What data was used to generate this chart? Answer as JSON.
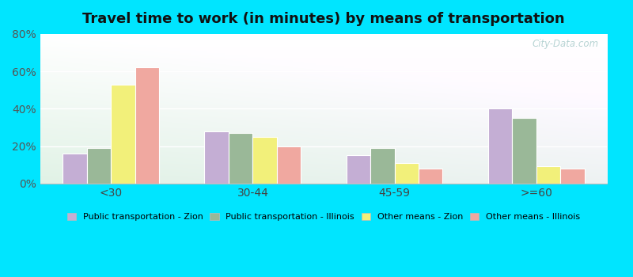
{
  "title": "Travel time to work (in minutes) by means of transportation",
  "categories": [
    "<30",
    "30-44",
    "45-59",
    ">=60"
  ],
  "series": [
    {
      "label": "Public transportation - Zion",
      "color": "#c4aed4",
      "values": [
        16,
        28,
        15,
        40
      ]
    },
    {
      "label": "Public transportation - Illinois",
      "color": "#9ab898",
      "values": [
        19,
        27,
        19,
        35
      ]
    },
    {
      "label": "Other means - Zion",
      "color": "#f2f07a",
      "values": [
        53,
        25,
        11,
        9
      ]
    },
    {
      "label": "Other means - Illinois",
      "color": "#f0a8a0",
      "values": [
        62,
        20,
        8,
        8
      ]
    }
  ],
  "ylim": [
    0,
    80
  ],
  "yticks": [
    0,
    20,
    40,
    60,
    80
  ],
  "ytick_labels": [
    "0%",
    "20%",
    "40%",
    "60%",
    "80%"
  ],
  "background_color": "#00e5ff",
  "bar_width": 0.17,
  "title_fontsize": 13,
  "watermark": "City-Data.com"
}
